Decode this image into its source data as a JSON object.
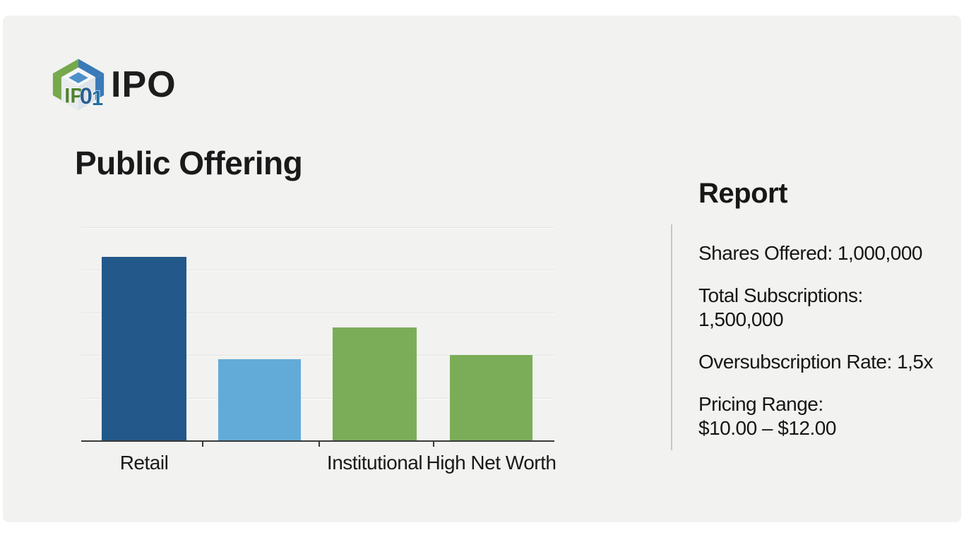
{
  "page": {
    "background": "#ffffff",
    "card_background": "#f2f2f0"
  },
  "header": {
    "logo_monogram": "IPO1",
    "brand": "IPO",
    "logo_colors": {
      "green": "#76a94b",
      "green_dark": "#50812f",
      "blue": "#3a7ab8",
      "blue_dark": "#2a5f93",
      "inner_diamond": "#4d8fc9"
    }
  },
  "title": "Public Offering",
  "report": {
    "heading": "Report",
    "items": [
      {
        "line1": "Shares Offered: 1,000,000",
        "line2": ""
      },
      {
        "line1": "Total Subscriptions:",
        "line2": "1,500,000"
      },
      {
        "line1": "Oversubscription Rate: 1,5x",
        "line2": ""
      },
      {
        "line1": "Pricing Range:",
        "line2": "$10.00 – $12.00"
      }
    ]
  },
  "chart_data": {
    "type": "bar",
    "title": "",
    "xlabel": "",
    "ylabel": "",
    "categories": [
      "Retail",
      "",
      "Institutional",
      "High Net Worth"
    ],
    "values": [
      4.3,
      1.9,
      2.65,
      2.0
    ],
    "value_axis_labeled": false,
    "values_note": "no numeric axis shown; values estimated in gridline units",
    "ylim": [
      0,
      5
    ],
    "gridlines": 5,
    "grid": true,
    "legend": false,
    "colors": [
      "#22588a",
      "#62abd8",
      "#7bad58",
      "#7bad58"
    ],
    "axis_color": "#3a3a3a",
    "gridline_color": "#e3e3e1"
  }
}
